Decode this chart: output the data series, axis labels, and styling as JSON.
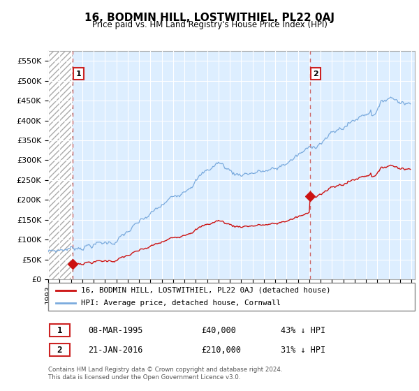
{
  "title": "16, BODMIN HILL, LOSTWITHIEL, PL22 0AJ",
  "subtitle": "Price paid vs. HM Land Registry's House Price Index (HPI)",
  "xlim_start": 1993.0,
  "xlim_end": 2025.3,
  "ylim_min": 0,
  "ylim_max": 575000,
  "yticks": [
    0,
    50000,
    100000,
    150000,
    200000,
    250000,
    300000,
    350000,
    400000,
    450000,
    500000,
    550000
  ],
  "ytick_labels": [
    "£0",
    "£50K",
    "£100K",
    "£150K",
    "£200K",
    "£250K",
    "£300K",
    "£350K",
    "£400K",
    "£450K",
    "£500K",
    "£550K"
  ],
  "purchase1_date": 1995.18,
  "purchase1_price": 40000,
  "purchase2_date": 2016.05,
  "purchase2_price": 210000,
  "hpi_color": "#7aaadd",
  "price_color": "#cc1111",
  "dashed_line_color": "#cc6666",
  "marker_color": "#cc1111",
  "bg_color": "#ddeeff",
  "grid_color": "#ffffff",
  "hatch_region_end": 1995.18,
  "legend_label1": "16, BODMIN HILL, LOSTWITHIEL, PL22 0AJ (detached house)",
  "legend_label2": "HPI: Average price, detached house, Cornwall",
  "table_row1": [
    "1",
    "08-MAR-1995",
    "£40,000",
    "43% ↓ HPI"
  ],
  "table_row2": [
    "2",
    "21-JAN-2016",
    "£210,000",
    "31% ↓ HPI"
  ],
  "footer": "Contains HM Land Registry data © Crown copyright and database right 2024.\nThis data is licensed under the Open Government Licence v3.0."
}
